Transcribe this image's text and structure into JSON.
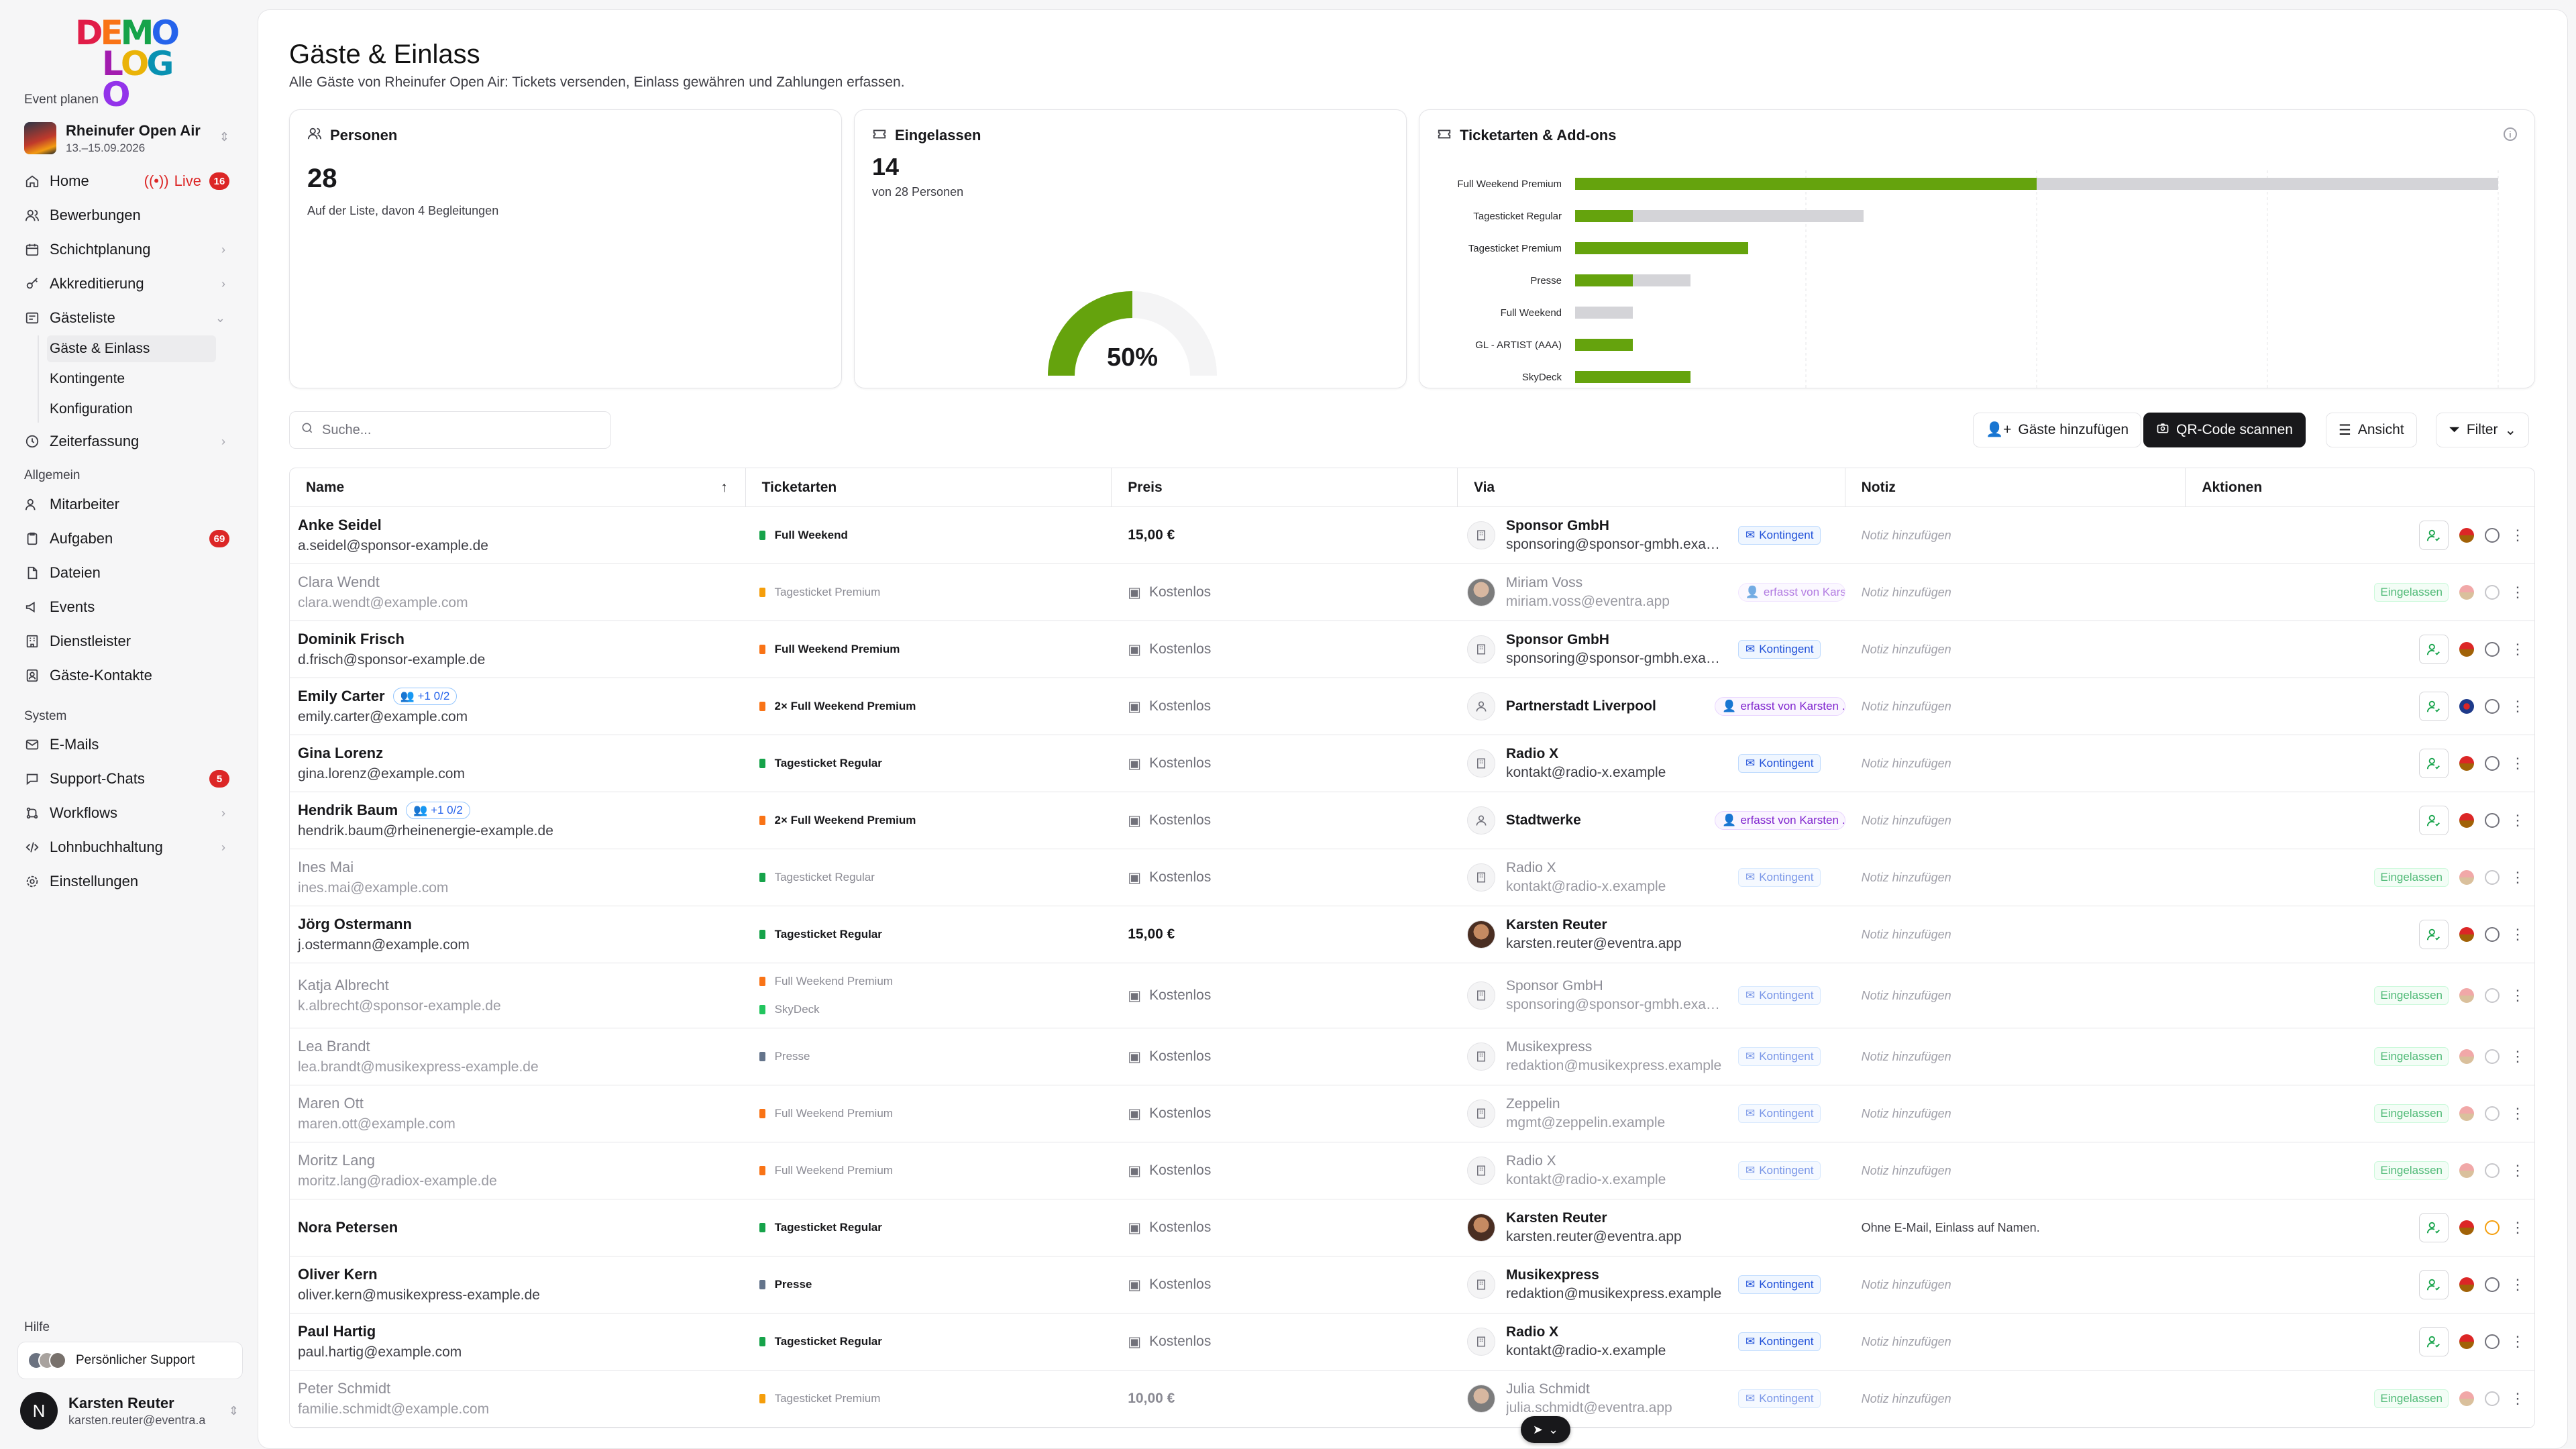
{
  "logo": {
    "line1": "DEMO",
    "line2": "LOGO"
  },
  "sidebar": {
    "section_event": "Event planen",
    "event": {
      "name": "Rheinufer Open Air",
      "dates": "13.–15.09.2026"
    },
    "home": {
      "label": "Home",
      "live": "Live",
      "count": "16"
    },
    "items_event": [
      {
        "label": "Bewerbungen"
      },
      {
        "label": "Schichtplanung"
      },
      {
        "label": "Akkreditierung"
      },
      {
        "label": "Gästeliste"
      }
    ],
    "sub_items": [
      {
        "label": "Gäste & Einlass"
      },
      {
        "label": "Kontingente"
      },
      {
        "label": "Konfiguration"
      }
    ],
    "zeit": {
      "label": "Zeiterfassung"
    },
    "section_general": "Allgemein",
    "items_general": [
      {
        "label": "Mitarbeiter"
      },
      {
        "label": "Aufgaben",
        "count": "69"
      },
      {
        "label": "Dateien"
      },
      {
        "label": "Events"
      },
      {
        "label": "Dienstleister"
      },
      {
        "label": "Gäste-Kontakte"
      }
    ],
    "section_system": "System",
    "items_system": [
      {
        "label": "E-Mails"
      },
      {
        "label": "Support-Chats",
        "count": "5"
      },
      {
        "label": "Workflows"
      },
      {
        "label": "Lohnbuchhaltung"
      },
      {
        "label": "Einstellungen"
      }
    ],
    "section_help": "Hilfe",
    "support": "Persönlicher Support",
    "user": {
      "initial": "N",
      "name": "Karsten Reuter",
      "email": "karsten.reuter@eventra.a"
    }
  },
  "page": {
    "title": "Gäste & Einlass",
    "subtitle": "Alle Gäste von Rheinufer Open Air: Tickets versenden, Einlass gewähren und Zahlungen erfassen."
  },
  "cards": {
    "personen": {
      "label": "Personen",
      "value": "28",
      "note": "Auf der Liste, davon 4 Begleitungen"
    },
    "eingelassen": {
      "label": "Eingelassen",
      "value": "14",
      "note": "von 28 Personen",
      "percent_text": "50%",
      "fraction": 0.5
    },
    "tickets": {
      "label": "Ticketarten & Add-ons"
    }
  },
  "chart_data": {
    "type": "bar",
    "categories": [
      "Full Weekend Premium",
      "Tagesticket Regular",
      "Tagesticket Premium",
      "Presse",
      "Full Weekend",
      "GL - ARTIST (AAA)",
      "SkyDeck"
    ],
    "series": [
      {
        "values": [
          8,
          1,
          3,
          1,
          0,
          1,
          2
        ]
      },
      {
        "values": [
          16,
          5,
          3,
          2,
          1,
          1,
          2
        ]
      }
    ]
  },
  "toolbar": {
    "search_placeholder": "Suche...",
    "add": "Gäste hinzufügen",
    "scan": "QR-Code scannen",
    "view": "Ansicht",
    "filter": "Filter"
  },
  "table": {
    "headers": {
      "name": "Name",
      "tickets": "Ticketarten",
      "price": "Preis",
      "via": "Via",
      "note": "Notiz",
      "actions": "Aktionen"
    },
    "note_placeholder": "Notiz hinzufügen",
    "admitted_label": "Eingelassen",
    "rows": [
      {
        "name": "Anke Seidel",
        "email": "a.seidel@sponsor-example.de",
        "tickets": [
          "Full Weekend"
        ],
        "price": "15,00 €",
        "via_name": "Sponsor GmbH",
        "via_mail": "sponsoring@sponsor-gmbh.example",
        "badge": "Kontingent"
      },
      {
        "name": "Clara Wendt",
        "email": "clara.wendt@example.com",
        "tickets": [
          "Tagesticket Premium"
        ],
        "price": "Kostenlos",
        "via_name": "Miriam Voss",
        "via_mail": "miriam.voss@eventra.app",
        "badge": "erfasst von Karsten ..."
      },
      {
        "name": "Dominik Frisch",
        "email": "d.frisch@sponsor-example.de",
        "tickets": [
          "Full Weekend Premium"
        ],
        "price": "Kostenlos",
        "via_name": "Sponsor GmbH",
        "via_mail": "sponsoring@sponsor-gmbh.example",
        "badge": "Kontingent"
      },
      {
        "name": "Emily Carter",
        "plus": "+1 0/2",
        "email": "emily.carter@example.com",
        "tickets": [
          "2× Full Weekend Premium"
        ],
        "price": "Kostenlos",
        "via_name": "Partnerstadt Liverpool",
        "via_mail": "",
        "badge": "erfasst von Karsten ..."
      },
      {
        "name": "Gina Lorenz",
        "email": "gina.lorenz@example.com",
        "tickets": [
          "Tagesticket Regular"
        ],
        "price": "Kostenlos",
        "via_name": "Radio X",
        "via_mail": "kontakt@radio-x.example",
        "badge": "Kontingent"
      },
      {
        "name": "Hendrik Baum",
        "plus": "+1 0/2",
        "email": "hendrik.baum@rheinenergie-example.de",
        "tickets": [
          "2× Full Weekend Premium"
        ],
        "price": "Kostenlos",
        "via_name": "Stadtwerke",
        "via_mail": "",
        "badge": "erfasst von Karsten ..."
      },
      {
        "name": "Ines Mai",
        "email": "ines.mai@example.com",
        "tickets": [
          "Tagesticket Regular"
        ],
        "price": "Kostenlos",
        "via_name": "Radio X",
        "via_mail": "kontakt@radio-x.example",
        "badge": "Kontingent"
      },
      {
        "name": "Jörg Ostermann",
        "email": "j.ostermann@example.com",
        "tickets": [
          "Tagesticket Regular"
        ],
        "price": "15,00 €",
        "via_name": "Karsten Reuter",
        "via_mail": "karsten.reuter@eventra.app",
        "badge": ""
      },
      {
        "name": "Katja Albrecht",
        "email": "k.albrecht@sponsor-example.de",
        "tickets": [
          "Full Weekend Premium",
          "SkyDeck"
        ],
        "price": "Kostenlos",
        "via_name": "Sponsor GmbH",
        "via_mail": "sponsoring@sponsor-gmbh.example",
        "badge": "Kontingent"
      },
      {
        "name": "Lea Brandt",
        "email": "lea.brandt@musikexpress-example.de",
        "tickets": [
          "Presse"
        ],
        "price": "Kostenlos",
        "via_name": "Musikexpress",
        "via_mail": "redaktion@musikexpress.example",
        "badge": "Kontingent"
      },
      {
        "name": "Maren Ott",
        "email": "maren.ott@example.com",
        "tickets": [
          "Full Weekend Premium"
        ],
        "price": "Kostenlos",
        "via_name": "Zeppelin",
        "via_mail": "mgmt@zeppelin.example",
        "badge": "Kontingent"
      },
      {
        "name": "Moritz Lang",
        "email": "moritz.lang@radiox-example.de",
        "tickets": [
          "Full Weekend Premium"
        ],
        "price": "Kostenlos",
        "via_name": "Radio X",
        "via_mail": "kontakt@radio-x.example",
        "badge": "Kontingent"
      },
      {
        "name": "Nora Petersen",
        "email": "",
        "tickets": [
          "Tagesticket Regular"
        ],
        "price": "Kostenlos",
        "via_name": "Karsten Reuter",
        "via_mail": "karsten.reuter@eventra.app",
        "badge": "",
        "note": "Ohne E-Mail, Einlass auf Namen."
      },
      {
        "name": "Oliver Kern",
        "email": "oliver.kern@musikexpress-example.de",
        "tickets": [
          "Presse"
        ],
        "price": "Kostenlos",
        "via_name": "Musikexpress",
        "via_mail": "redaktion@musikexpress.example",
        "badge": "Kontingent"
      },
      {
        "name": "Paul Hartig",
        "email": "paul.hartig@example.com",
        "tickets": [
          "Tagesticket Regular"
        ],
        "price": "Kostenlos",
        "via_name": "Radio X",
        "via_mail": "kontakt@radio-x.example",
        "badge": "Kontingent"
      },
      {
        "name": "Peter Schmidt",
        "email": "familie.schmidt@example.com",
        "tickets": [
          "Tagesticket Premium"
        ],
        "price": "10,00 €",
        "via_name": "Julia Schmidt",
        "via_mail": "julia.schmidt@eventra.app",
        "badge": "Kontingent"
      }
    ]
  }
}
